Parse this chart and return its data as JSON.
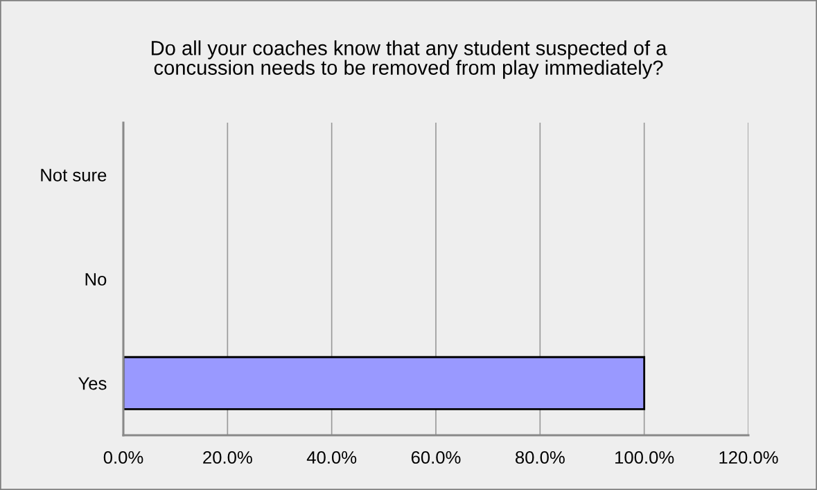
{
  "chart_data": {
    "type": "bar",
    "orientation": "horizontal",
    "title": "Do all your coaches know that any student suspected of a\nconcussion needs to be removed from play immediately?",
    "categories": [
      "Not sure",
      "No",
      "Yes"
    ],
    "values": [
      0,
      0,
      100
    ],
    "color": "#9999ff",
    "xlim": [
      0,
      120
    ],
    "xticks": [
      {
        "value": 0,
        "label": "0.0%"
      },
      {
        "value": 20,
        "label": "20.0%"
      },
      {
        "value": 40,
        "label": "40.0%"
      },
      {
        "value": 60,
        "label": "60.0%"
      },
      {
        "value": 80,
        "label": "80.0%"
      },
      {
        "value": 100,
        "label": "100.0%"
      },
      {
        "value": 120,
        "label": "120.0%"
      }
    ],
    "grid": "x"
  }
}
